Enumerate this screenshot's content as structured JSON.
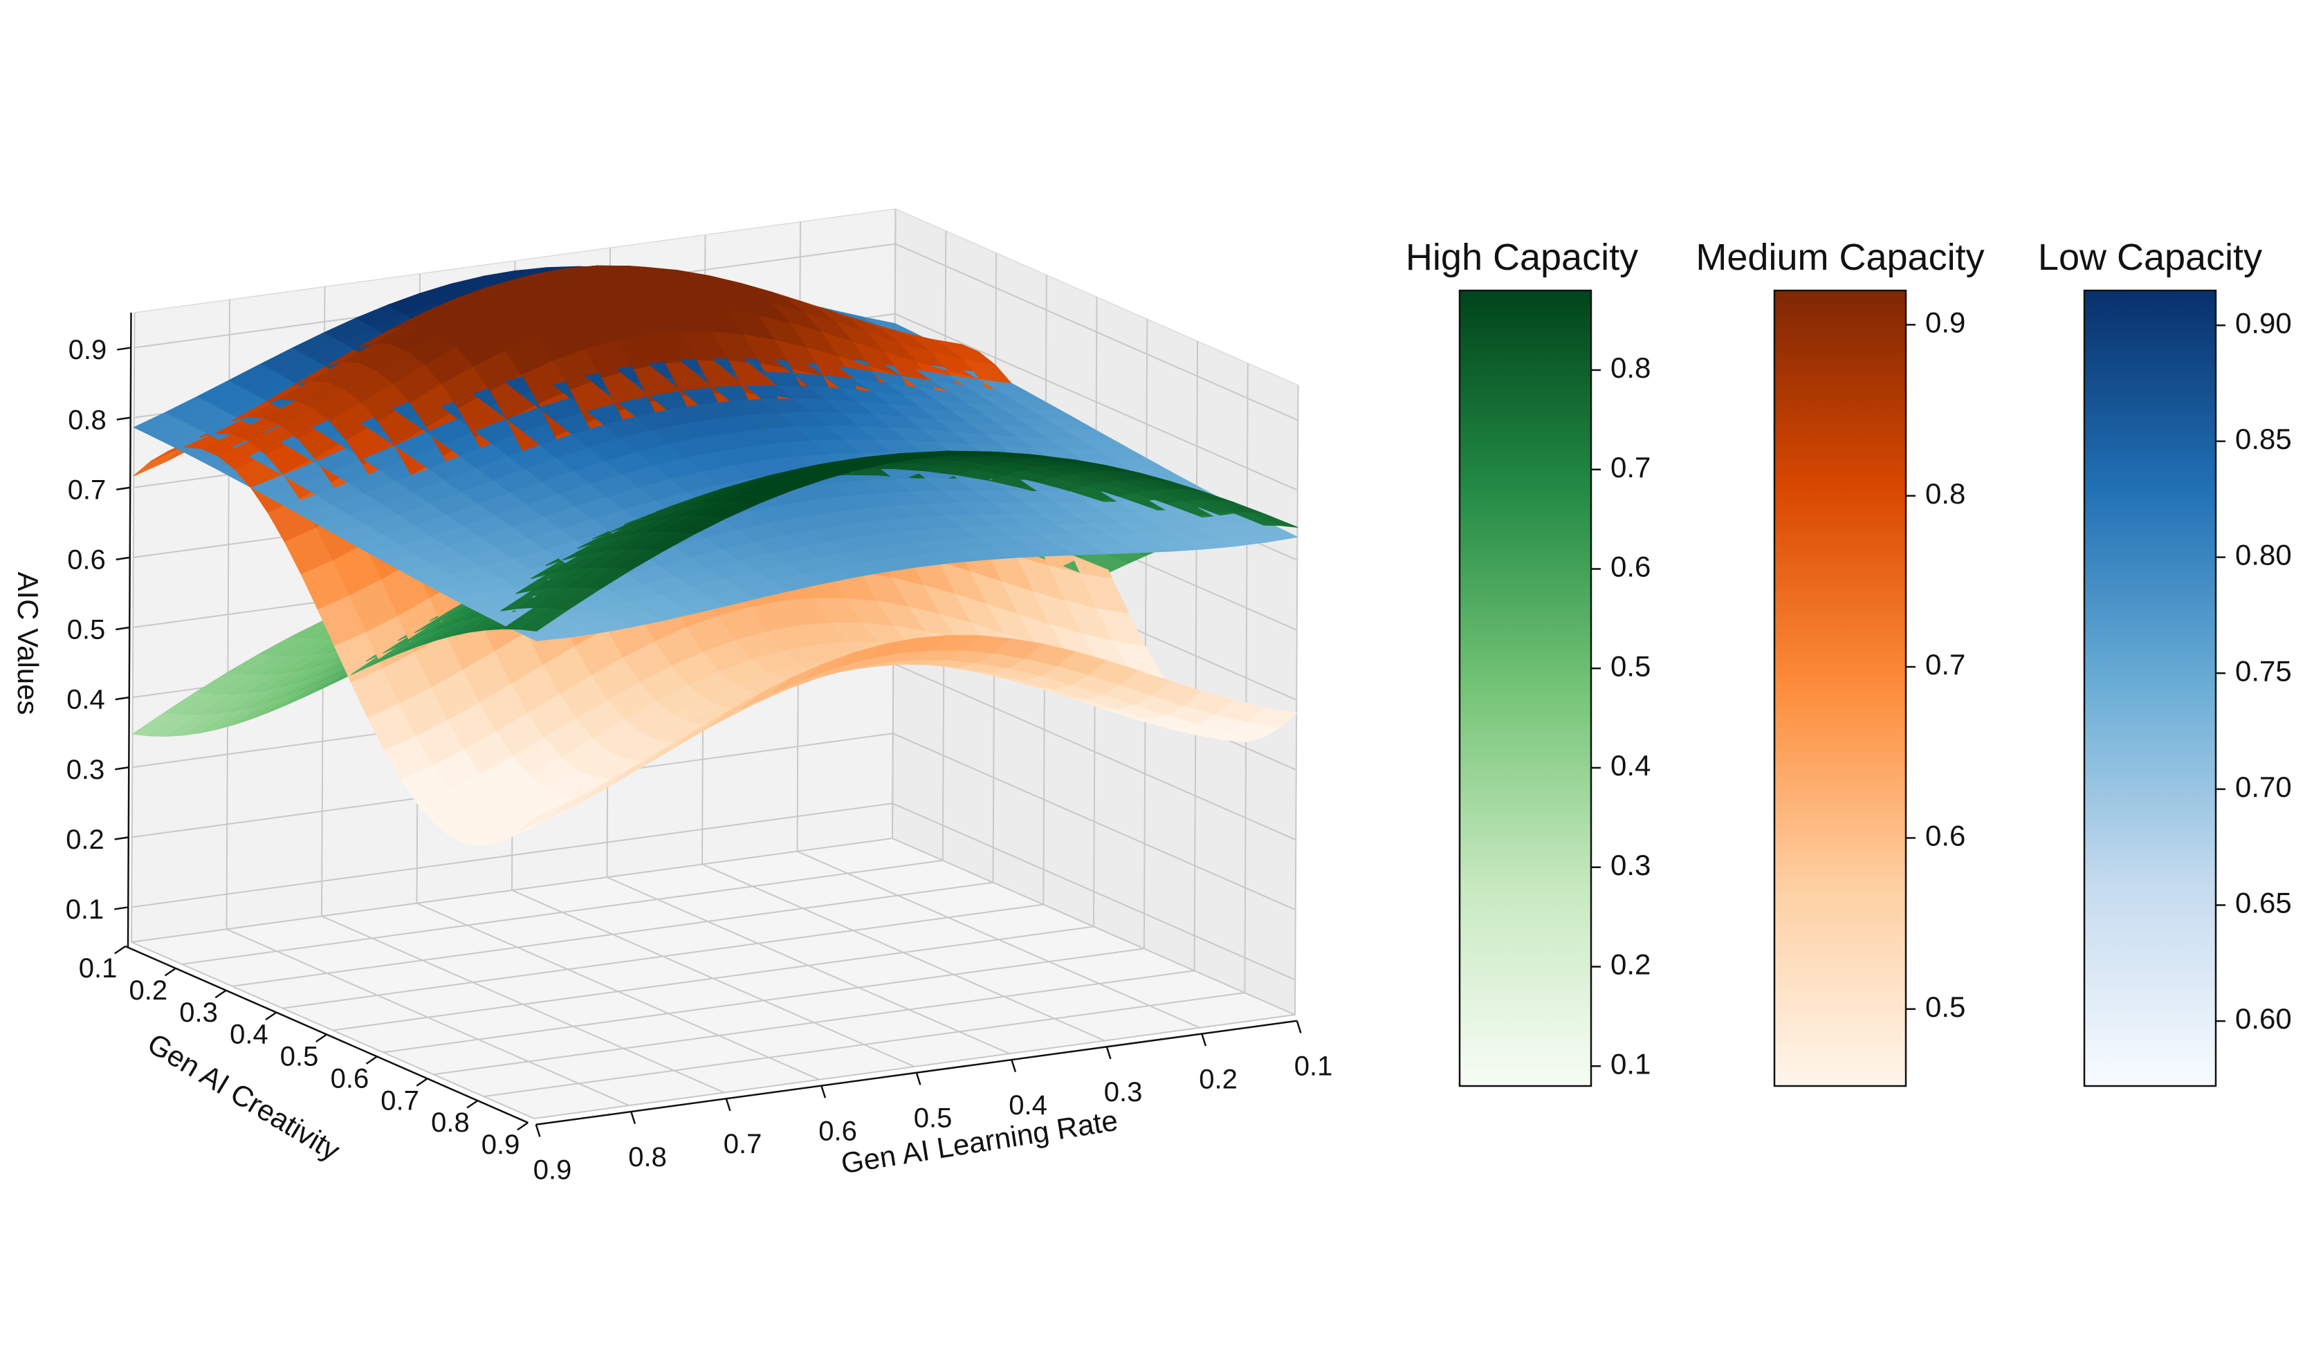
{
  "chart_data": {
    "type": "surface3d",
    "x_axis": {
      "label": "Gen AI Learning Rate",
      "ticks": [
        "0.9",
        "0.8",
        "0.7",
        "0.6",
        "0.5",
        "0.4",
        "0.3",
        "0.2",
        "0.1"
      ],
      "range": [
        0.1,
        0.9
      ]
    },
    "y_axis": {
      "label": "Gen AI Creativity",
      "ticks": [
        "0.1",
        "0.2",
        "0.3",
        "0.4",
        "0.5",
        "0.6",
        "0.7",
        "0.8",
        "0.9"
      ],
      "range": [
        0.1,
        0.9
      ]
    },
    "z_axis": {
      "label": "AIC Values",
      "ticks": [
        "0.1",
        "0.2",
        "0.3",
        "0.4",
        "0.5",
        "0.6",
        "0.7",
        "0.8",
        "0.9"
      ],
      "range": [
        0.05,
        0.95
      ]
    },
    "grid": true,
    "series": [
      {
        "name": "High Capacity",
        "colormap": "Greens",
        "color_range": [
          0.08,
          0.88
        ],
        "colorbar_ticks": [
          "0.1",
          "0.2",
          "0.3",
          "0.4",
          "0.5",
          "0.6",
          "0.7",
          "0.8"
        ],
        "colors": [
          "#f7fcf5",
          "#c7e9c0",
          "#74c476",
          "#238b45",
          "#00441b"
        ]
      },
      {
        "name": "Medium Capacity",
        "colormap": "Oranges",
        "color_range": [
          0.455,
          0.92
        ],
        "colorbar_ticks": [
          "0.5",
          "0.6",
          "0.7",
          "0.8",
          "0.9"
        ],
        "colors": [
          "#fff5eb",
          "#fdd0a2",
          "#fd8d3c",
          "#d94801",
          "#7f2704"
        ]
      },
      {
        "name": "Low Capacity",
        "colormap": "Blues",
        "color_range": [
          0.572,
          0.915
        ],
        "colorbar_ticks": [
          "0.60",
          "0.65",
          "0.70",
          "0.75",
          "0.80",
          "0.85",
          "0.90"
        ],
        "colors": [
          "#f7fbff",
          "#c6dbef",
          "#6baed6",
          "#2171b5",
          "#08306b"
        ]
      }
    ]
  }
}
